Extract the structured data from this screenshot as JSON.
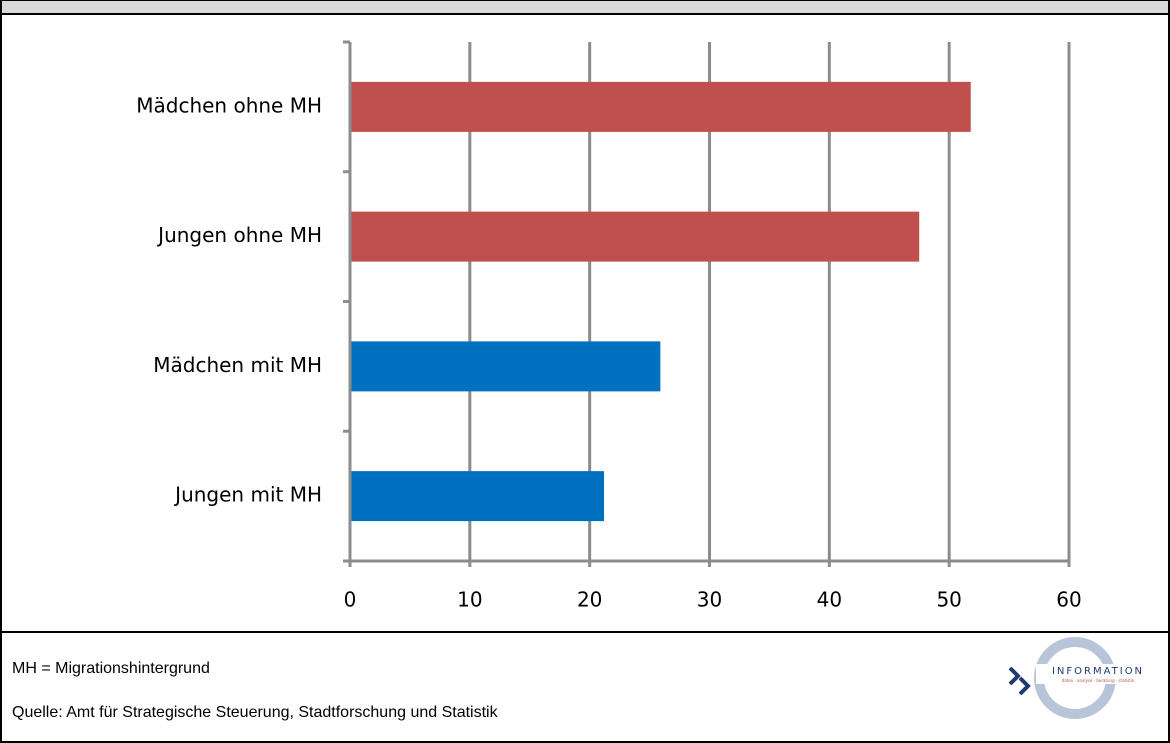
{
  "chart_data": {
    "type": "bar",
    "orientation": "horizontal",
    "categories": [
      "Mädchen ohne MH",
      "Jungen ohne MH",
      "Mädchen mit MH",
      "Jungen mit MH"
    ],
    "values": [
      51.8,
      47.5,
      25.9,
      21.2
    ],
    "colors": [
      "#c0504d",
      "#c0504d",
      "#0070c0",
      "#0070c0"
    ],
    "xlim": [
      0,
      60
    ],
    "xticks": [
      0,
      10,
      20,
      30,
      40,
      50,
      60
    ],
    "grid": true
  },
  "footer": {
    "note": "MH = Migrationshintergrund",
    "source": "Quelle: Amt für Strategische Steuerung, Stadtforschung und Statistik",
    "logo_title": "INFORMATION",
    "logo_subtitle": "daten · analyse · beratung · statistik"
  }
}
